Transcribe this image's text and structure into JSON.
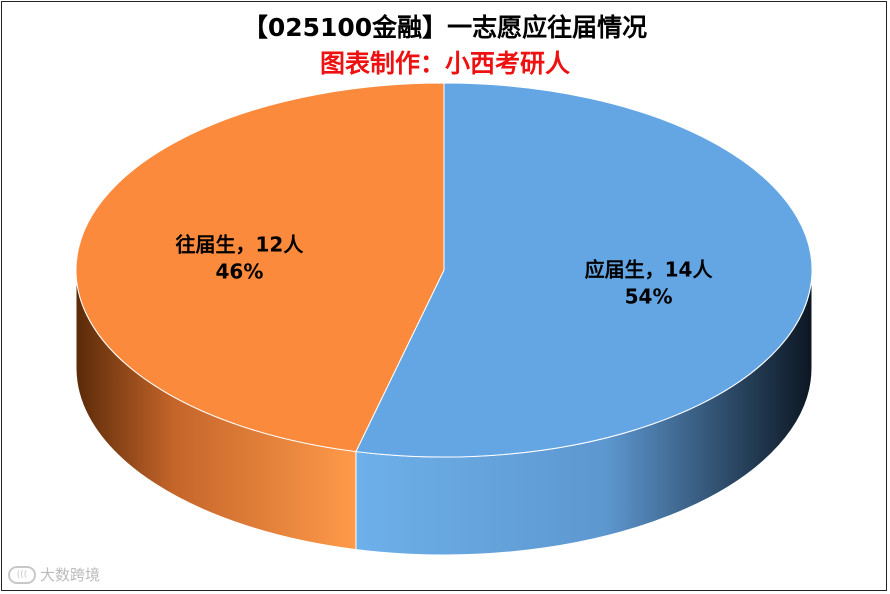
{
  "title": "【025100金融】一志愿应往届情况",
  "subtitle": "图表制作：小西考研人",
  "watermark": {
    "text": "大数跨境"
  },
  "chart_data": {
    "type": "pie",
    "title": "【025100金融】一志愿应往届情况",
    "subtitle": "图表制作：小西考研人",
    "style": "3d-pie",
    "slices": [
      {
        "name": "应届生",
        "value": 14,
        "percent_label": "54%",
        "label": "应届生，14人",
        "color": "#64a6e3",
        "side_color_dark": "#101c2a",
        "side_color_light": "#6eb0ea"
      },
      {
        "name": "往届生",
        "value": 12,
        "percent_label": "46%",
        "label": "往届生，12人",
        "color": "#fb8a3c",
        "side_color_dark": "#5a2a08",
        "side_color_light": "#ff9a4a"
      }
    ],
    "legend": "none"
  }
}
